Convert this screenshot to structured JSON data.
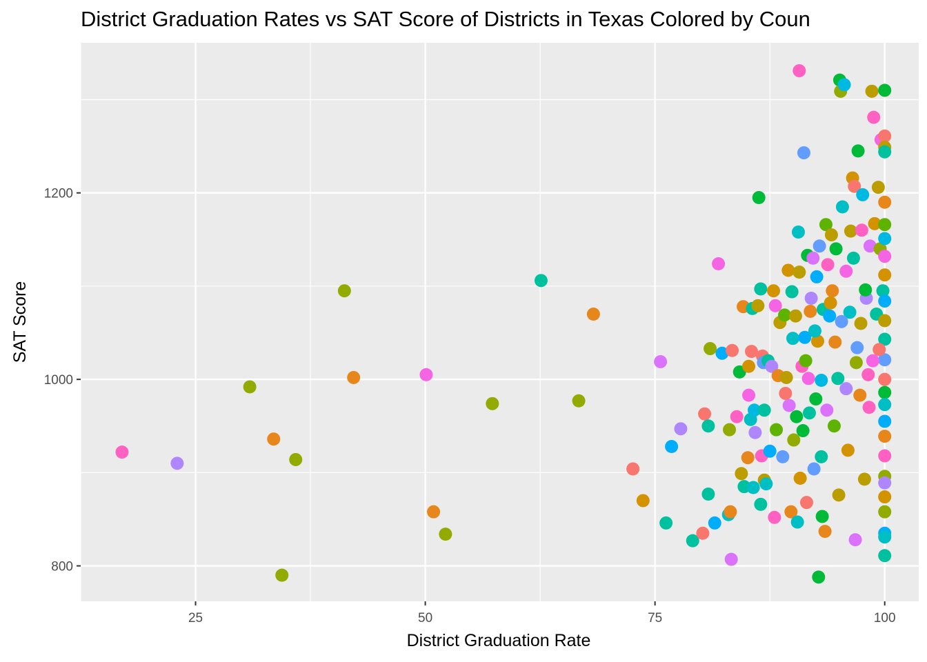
{
  "chart_data": {
    "type": "scatter",
    "title": "District Graduation Rates vs SAT Score of Districts in Texas Colored by Coun",
    "xlabel": "District Graduation Rate",
    "ylabel": "SAT Score",
    "xlim": [
      12.5,
      103.7
    ],
    "ylim": [
      762,
      1361
    ],
    "x_ticks": [
      25,
      50,
      75,
      100
    ],
    "x_tick_labels": [
      "25",
      "50",
      "75",
      "100"
    ],
    "y_ticks": [
      800,
      1000,
      1200
    ],
    "y_tick_labels": [
      "800",
      "1000",
      "1200"
    ],
    "grid": true,
    "legend": "none",
    "palette": [
      "#F8766D",
      "#E7861B",
      "#D39200",
      "#BB9D00",
      "#93AA00",
      "#5EB300",
      "#00BA38",
      "#00C19F",
      "#00BFC4",
      "#00B9E3",
      "#00ADFA",
      "#619CFF",
      "#AE87FF",
      "#DB72FB",
      "#F564E3",
      "#FF61C3"
    ],
    "points": [
      [
        17,
        922,
        15
      ],
      [
        23,
        910,
        12
      ],
      [
        30.9,
        992,
        4
      ],
      [
        33.5,
        936,
        1
      ],
      [
        34.4,
        790,
        4
      ],
      [
        35.9,
        914,
        4
      ],
      [
        41.2,
        1095,
        4
      ],
      [
        42.2,
        1002,
        1
      ],
      [
        50.1,
        1005,
        14
      ],
      [
        50.9,
        858,
        1
      ],
      [
        52.2,
        834,
        4
      ],
      [
        57.3,
        974,
        4
      ],
      [
        62.6,
        1106,
        7
      ],
      [
        66.7,
        977,
        4
      ],
      [
        68.3,
        1070,
        1
      ],
      [
        72.6,
        904,
        0
      ],
      [
        73.7,
        870,
        2
      ],
      [
        75.6,
        1019,
        13
      ],
      [
        77.8,
        947,
        12
      ],
      [
        76.2,
        846,
        7
      ],
      [
        76.8,
        928,
        10
      ],
      [
        79.1,
        827,
        7
      ],
      [
        80.2,
        835,
        0
      ],
      [
        80.4,
        963,
        0
      ],
      [
        80.8,
        877,
        7
      ],
      [
        80.8,
        950,
        7
      ],
      [
        81,
        1033,
        4
      ],
      [
        81.5,
        846,
        10
      ],
      [
        81.9,
        1124,
        14
      ],
      [
        82.3,
        1028,
        10
      ],
      [
        83,
        855,
        8
      ],
      [
        83.1,
        946,
        4
      ],
      [
        83.2,
        858,
        1
      ],
      [
        83.3,
        807,
        13
      ],
      [
        83.4,
        1031,
        0
      ],
      [
        83.9,
        960,
        15
      ],
      [
        84.2,
        1008,
        6
      ],
      [
        84.4,
        899,
        3
      ],
      [
        84.6,
        1078,
        1
      ],
      [
        84.7,
        885,
        7
      ],
      [
        85.1,
        916,
        1
      ],
      [
        85.2,
        1014,
        2
      ],
      [
        85.2,
        983,
        14
      ],
      [
        85.4,
        957,
        8
      ],
      [
        85.5,
        1030,
        0
      ],
      [
        85.6,
        1076,
        7
      ],
      [
        85.7,
        884,
        8
      ],
      [
        85.8,
        967,
        9
      ],
      [
        85.9,
        943,
        12
      ],
      [
        86.2,
        1079,
        3
      ],
      [
        86.3,
        1195,
        6
      ],
      [
        86.5,
        1097,
        7
      ],
      [
        86.5,
        866,
        7
      ],
      [
        86.6,
        918,
        15
      ],
      [
        86.7,
        1025,
        0
      ],
      [
        86.8,
        1018,
        11
      ],
      [
        86.9,
        967,
        7
      ],
      [
        86.9,
        892,
        3
      ],
      [
        87.1,
        888,
        8
      ],
      [
        87.3,
        1020,
        7
      ],
      [
        87.5,
        923,
        10
      ],
      [
        87.7,
        1014,
        12
      ],
      [
        87.9,
        1095,
        2
      ],
      [
        88,
        852,
        15
      ],
      [
        88.1,
        1079,
        14
      ],
      [
        88.2,
        946,
        5
      ],
      [
        88.4,
        1004,
        1
      ],
      [
        88.6,
        1061,
        3
      ],
      [
        88.9,
        917,
        11
      ],
      [
        89.1,
        1069,
        5
      ],
      [
        89.3,
        1002,
        3
      ],
      [
        89.5,
        1117,
        2
      ],
      [
        89.6,
        972,
        13
      ],
      [
        89.8,
        858,
        1
      ],
      [
        89.9,
        1094,
        7
      ],
      [
        90,
        1044,
        8
      ],
      [
        90.1,
        935,
        4
      ],
      [
        90.3,
        1068,
        3
      ],
      [
        90.5,
        847,
        8
      ],
      [
        90.6,
        1158,
        8
      ],
      [
        90.7,
        1331,
        15
      ],
      [
        90.8,
        894,
        2
      ],
      [
        91,
        1014,
        15
      ],
      [
        91.1,
        945,
        6
      ],
      [
        91.2,
        1243,
        11
      ],
      [
        91.3,
        1045,
        10
      ],
      [
        91.5,
        868,
        0
      ],
      [
        91.6,
        1133,
        6
      ],
      [
        91.7,
        1001,
        14
      ],
      [
        91.8,
        964,
        7
      ],
      [
        92,
        1087,
        12
      ],
      [
        92.2,
        1130,
        13
      ],
      [
        92.3,
        904,
        11
      ],
      [
        92.5,
        979,
        6
      ],
      [
        92.7,
        1041,
        2
      ],
      [
        92.8,
        788,
        6
      ],
      [
        92.9,
        1143,
        11
      ],
      [
        93.1,
        917,
        7
      ],
      [
        93.2,
        853,
        6
      ],
      [
        93.3,
        1075,
        7
      ],
      [
        93.5,
        837,
        1
      ],
      [
        93.6,
        1166,
        5
      ],
      [
        93.8,
        1123,
        15
      ],
      [
        94,
        1068,
        10
      ],
      [
        94.2,
        1155,
        3
      ],
      [
        94.3,
        1095,
        1
      ],
      [
        94.5,
        950,
        5
      ],
      [
        94.7,
        1140,
        6
      ],
      [
        94.9,
        1001,
        7
      ],
      [
        95,
        876,
        3
      ],
      [
        95.1,
        1321,
        6
      ],
      [
        95.2,
        1309,
        4
      ],
      [
        95.4,
        1185,
        8
      ],
      [
        95.6,
        1316,
        9
      ],
      [
        95.8,
        1116,
        14
      ],
      [
        96,
        924,
        2
      ],
      [
        96.2,
        1072,
        8
      ],
      [
        96.3,
        1159,
        3
      ],
      [
        96.5,
        1216,
        2
      ],
      [
        96.7,
        1207,
        0
      ],
      [
        96.8,
        828,
        13
      ],
      [
        97,
        1034,
        11
      ],
      [
        97.1,
        1245,
        6
      ],
      [
        97.3,
        983,
        1
      ],
      [
        97.5,
        1160,
        15
      ],
      [
        97.6,
        1198,
        9
      ],
      [
        97.8,
        893,
        3
      ],
      [
        98,
        1087,
        12
      ],
      [
        98.2,
        1005,
        15
      ],
      [
        98.4,
        1143,
        13
      ],
      [
        98.6,
        1309,
        3
      ],
      [
        98.8,
        1281,
        15
      ],
      [
        98.9,
        1167,
        2
      ],
      [
        99.1,
        1070,
        7
      ],
      [
        99.3,
        1206,
        3
      ],
      [
        99.5,
        1140,
        4
      ],
      [
        99.6,
        1257,
        14
      ],
      [
        99.8,
        1095,
        7
      ],
      [
        100,
        1310,
        6
      ],
      [
        100,
        1261,
        0
      ],
      [
        100,
        1249,
        3
      ],
      [
        100,
        1244,
        7
      ],
      [
        100,
        1190,
        1
      ],
      [
        100,
        1166,
        5
      ],
      [
        100,
        1151,
        9
      ],
      [
        100,
        1132,
        14
      ],
      [
        100,
        1112,
        2
      ],
      [
        100,
        1084,
        10
      ],
      [
        100,
        1063,
        3
      ],
      [
        100,
        1043,
        7
      ],
      [
        100,
        1021,
        11
      ],
      [
        100,
        1000,
        0
      ],
      [
        100,
        986,
        6
      ],
      [
        100,
        973,
        8
      ],
      [
        100,
        955,
        10
      ],
      [
        100,
        939,
        1
      ],
      [
        100,
        918,
        15
      ],
      [
        100,
        896,
        4
      ],
      [
        100,
        889,
        12
      ],
      [
        100,
        874,
        2
      ],
      [
        100,
        858,
        4
      ],
      [
        100,
        835,
        10
      ],
      [
        100,
        831,
        8
      ],
      [
        100,
        811,
        7
      ],
      [
        89.2,
        985,
        0
      ],
      [
        91.4,
        1020,
        5
      ],
      [
        93.1,
        999,
        9
      ],
      [
        94.6,
        1040,
        1
      ],
      [
        95.8,
        990,
        12
      ],
      [
        97.4,
        1060,
        3
      ],
      [
        98.7,
        1020,
        14
      ],
      [
        90.4,
        960,
        6
      ],
      [
        92.6,
        1110,
        10
      ],
      [
        96.6,
        1130,
        7
      ],
      [
        98.3,
        970,
        15
      ],
      [
        94.1,
        1082,
        2
      ],
      [
        92.4,
        1052,
        8
      ],
      [
        96.9,
        1018,
        4
      ],
      [
        95.3,
        1062,
        11
      ],
      [
        99.4,
        1032,
        0
      ],
      [
        93.7,
        967,
        13
      ],
      [
        97.9,
        1096,
        6
      ],
      [
        91.9,
        1073,
        1
      ],
      [
        90.7,
        1115,
        3
      ]
    ]
  }
}
